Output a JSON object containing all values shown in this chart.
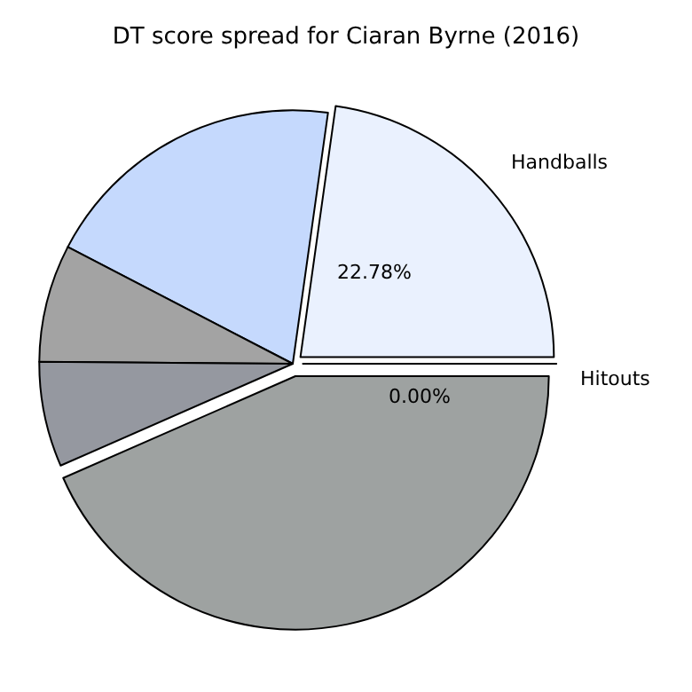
{
  "chart_data": {
    "type": "pie",
    "title": "DT score spread for Ciaran Byrne (2016)",
    "categories": [
      "Handballs",
      null,
      null,
      null,
      null,
      "Hitouts"
    ],
    "values": [
      22.78,
      19.6,
      7.5,
      6.7,
      43.42,
      0.0
    ],
    "value_labels": [
      "22.78%",
      null,
      null,
      null,
      null,
      "0.00%"
    ],
    "colors": [
      "#eaf1fe",
      "#c5d9fd",
      "#a3a3a3",
      "#9598a0",
      "#9ea2a1",
      "#ffffff"
    ],
    "legend": false
  }
}
